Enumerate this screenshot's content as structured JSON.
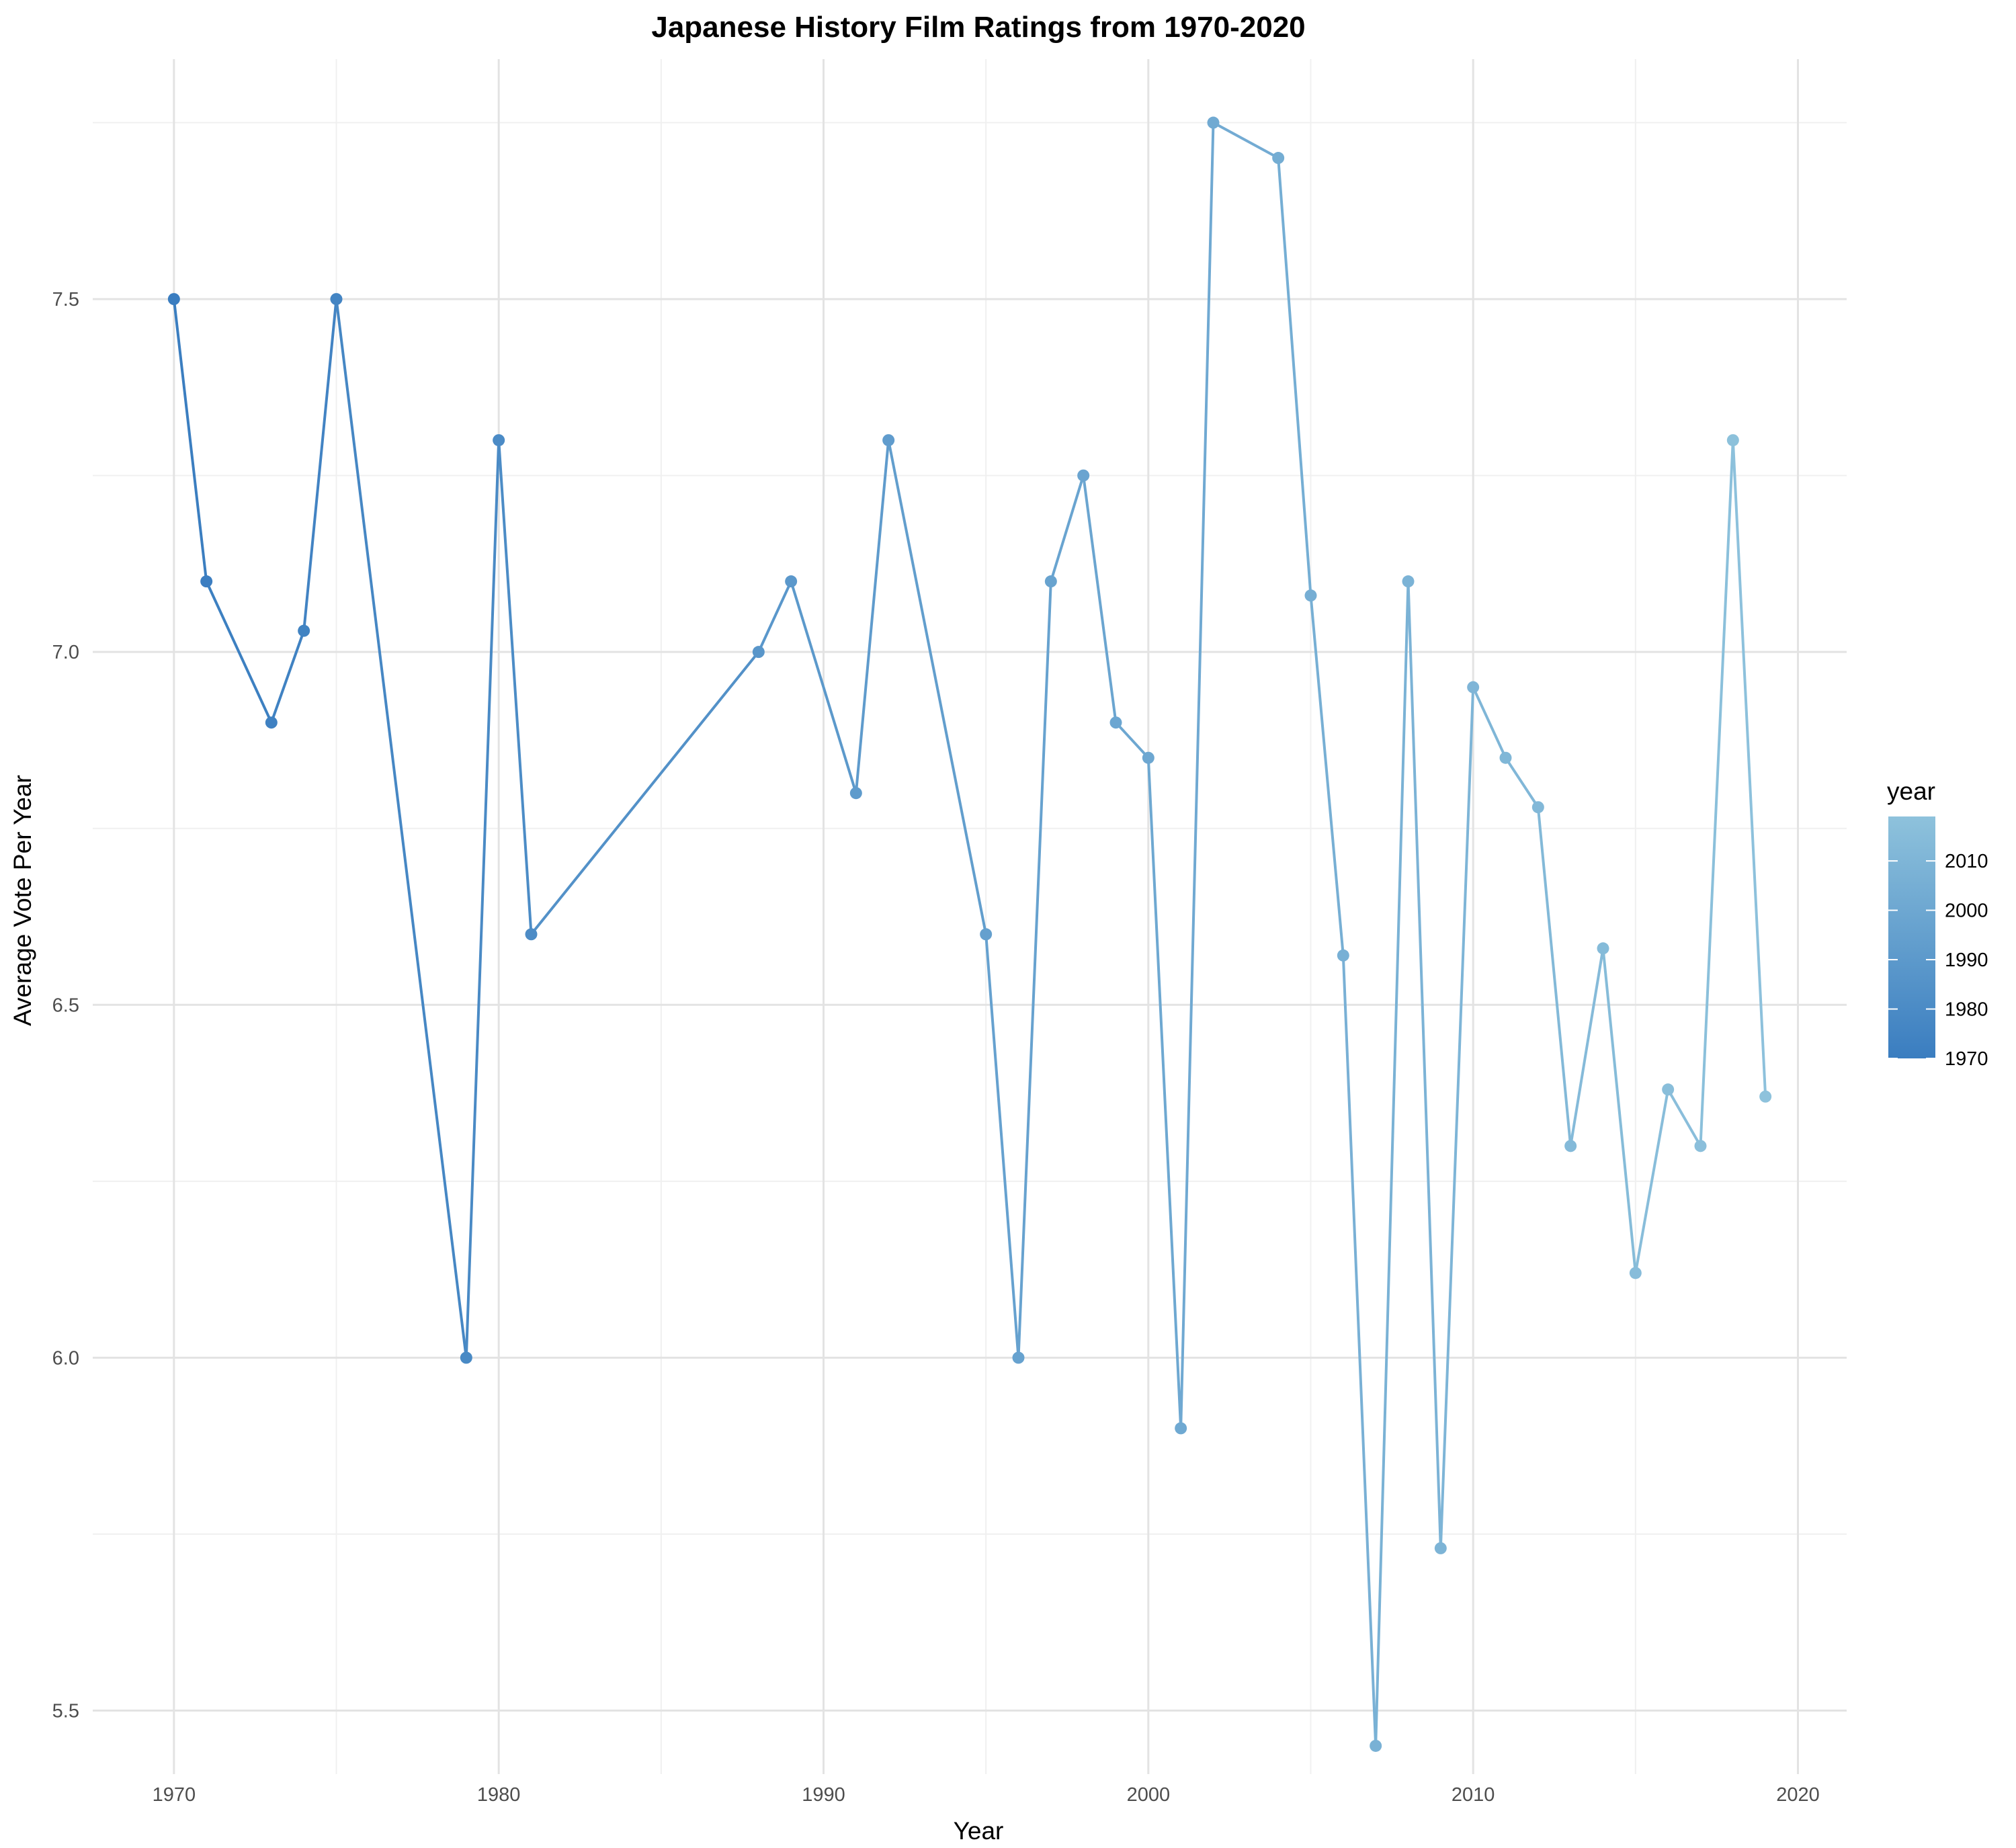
{
  "chart_data": {
    "type": "line",
    "title": "Japanese History Film Ratings from 1970-2020",
    "xlabel": "Year",
    "ylabel": "Average Vote Per Year",
    "xlim": [
      1967.5,
      2021.5
    ],
    "ylim": [
      5.41,
      7.84
    ],
    "x_ticks": [
      1970,
      1980,
      1990,
      2000,
      2010,
      2020
    ],
    "y_ticks": [
      5.5,
      6.0,
      6.5,
      7.0,
      7.5
    ],
    "y_tick_labels": [
      "5.5",
      "6.0",
      "6.5",
      "7.0",
      "7.5"
    ],
    "grid": true,
    "legend": {
      "title": "year",
      "position": "right",
      "ticks": [
        1970,
        1980,
        1990,
        2000,
        2010
      ],
      "range": [
        1970,
        2019
      ],
      "color_low": "#3a7dc0",
      "color_high": "#8ec2dc"
    },
    "series": [
      {
        "x": [
          1970,
          1971,
          1973,
          1974,
          1975,
          1979,
          1980,
          1981,
          1988,
          1989,
          1991,
          1992,
          1995,
          1996,
          1997,
          1998,
          1999,
          2000,
          2001,
          2002,
          2004,
          2005,
          2006,
          2007,
          2008,
          2009,
          2010,
          2011,
          2012,
          2013,
          2014,
          2015,
          2016,
          2017,
          2018,
          2019
        ],
        "y": [
          7.5,
          7.1,
          6.9,
          7.03,
          7.5,
          6.0,
          7.3,
          6.6,
          7.0,
          7.1,
          6.8,
          7.3,
          6.6,
          6.0,
          7.1,
          7.25,
          6.9,
          6.85,
          5.9,
          7.75,
          7.7,
          7.08,
          6.57,
          5.45,
          7.1,
          5.73,
          6.95,
          6.85,
          6.78,
          6.3,
          6.58,
          6.12,
          6.38,
          6.3,
          7.3,
          6.37
        ]
      }
    ]
  }
}
